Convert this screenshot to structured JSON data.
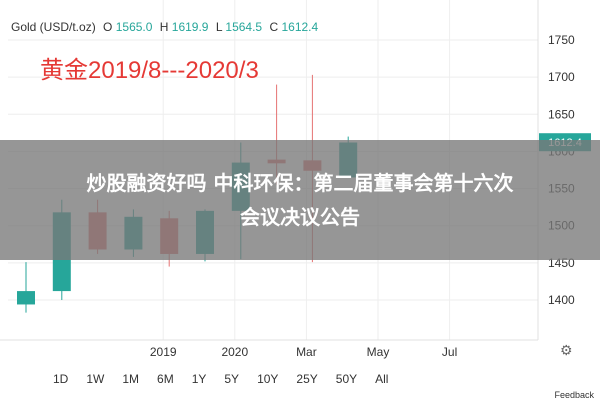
{
  "header": {
    "symbol": "Gold (USD/t.oz)",
    "o_label": "O",
    "o_value": "1565.0",
    "h_label": "H",
    "h_value": "1619.9",
    "l_label": "L",
    "l_value": "1564.5",
    "c_label": "C",
    "c_value": "1612.4"
  },
  "annotation": "黄金2019/8---2020/3",
  "banner": {
    "line1": "炒股融资好吗 中科环保：第二届董事会第十六次",
    "line2": "会议决议公告"
  },
  "ranges": [
    "1D",
    "1W",
    "1M",
    "6M",
    "1Y",
    "5Y",
    "10Y",
    "25Y",
    "50Y",
    "All"
  ],
  "feedback": "Feedback",
  "colors": {
    "up": "#26a69a",
    "down": "#e57373",
    "accent": "#e53935",
    "price_tag": "#26a69a"
  },
  "chart_data": {
    "type": "candlestick",
    "y_ticks": [
      1400,
      1450,
      1500,
      1550,
      1600,
      1650,
      1700,
      1750
    ],
    "ylim": [
      1365,
      1786
    ],
    "current_price": "1612.4",
    "x_labels": [
      {
        "label": "2019",
        "index": 4
      },
      {
        "label": "2020",
        "index": 6
      },
      {
        "label": "Mar",
        "index": 8
      },
      {
        "label": "May",
        "index": 10
      },
      {
        "label": "Jul",
        "index": 12
      }
    ],
    "candles": [
      {
        "o": 1394,
        "h": 1451,
        "l": 1383,
        "c": 1412
      },
      {
        "o": 1412,
        "h": 1535,
        "l": 1400,
        "c": 1518
      },
      {
        "o": 1518,
        "h": 1535,
        "l": 1462,
        "c": 1468
      },
      {
        "o": 1468,
        "h": 1522,
        "l": 1458,
        "c": 1512
      },
      {
        "o": 1510,
        "h": 1520,
        "l": 1445,
        "c": 1462
      },
      {
        "o": 1462,
        "h": 1522,
        "l": 1452,
        "c": 1520
      },
      {
        "o": 1520,
        "h": 1612,
        "l": 1455,
        "c": 1585
      },
      {
        "o": 1589,
        "h": 1690,
        "l": 1555,
        "c": 1584
      },
      {
        "o": 1588,
        "h": 1703,
        "l": 1451,
        "c": 1574
      },
      {
        "o": 1565,
        "h": 1620,
        "l": 1565,
        "c": 1612
      }
    ]
  }
}
